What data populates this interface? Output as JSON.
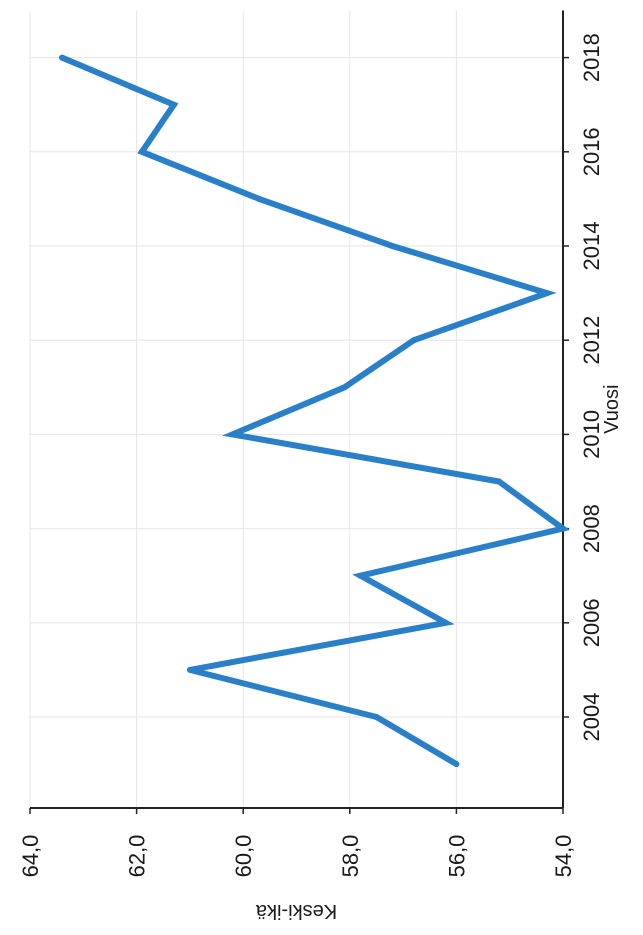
{
  "chart_data": {
    "type": "line",
    "title": "",
    "xlabel": "Vuosi",
    "ylabel": "Keski-ikä",
    "x": [
      2003,
      2004,
      2005,
      2006,
      2007,
      2008,
      2009,
      2010,
      2011,
      2012,
      2013,
      2014,
      2015,
      2016,
      2017,
      2018
    ],
    "series": [
      {
        "values": [
          56.0,
          57.5,
          61.0,
          56.2,
          57.8,
          54.0,
          55.2,
          60.2,
          58.1,
          56.8,
          54.3,
          57.2,
          59.7,
          61.9,
          61.3,
          63.4
        ]
      }
    ],
    "xlim": [
      2002,
      2019
    ],
    "ylim": [
      54,
      64
    ],
    "x_ticks": [
      "2004",
      "2006",
      "2008",
      "2010",
      "2012",
      "2014",
      "2016",
      "2018"
    ],
    "y_ticks": [
      "64,0",
      "62,0",
      "60,0",
      "58,0",
      "56,0",
      "54,0"
    ],
    "grid": true,
    "orientation": "rotated 90 degrees clockwise",
    "colors": {
      "line": "#2a7fc9",
      "grid": "#e6e6e6",
      "axis": "#222222"
    }
  }
}
